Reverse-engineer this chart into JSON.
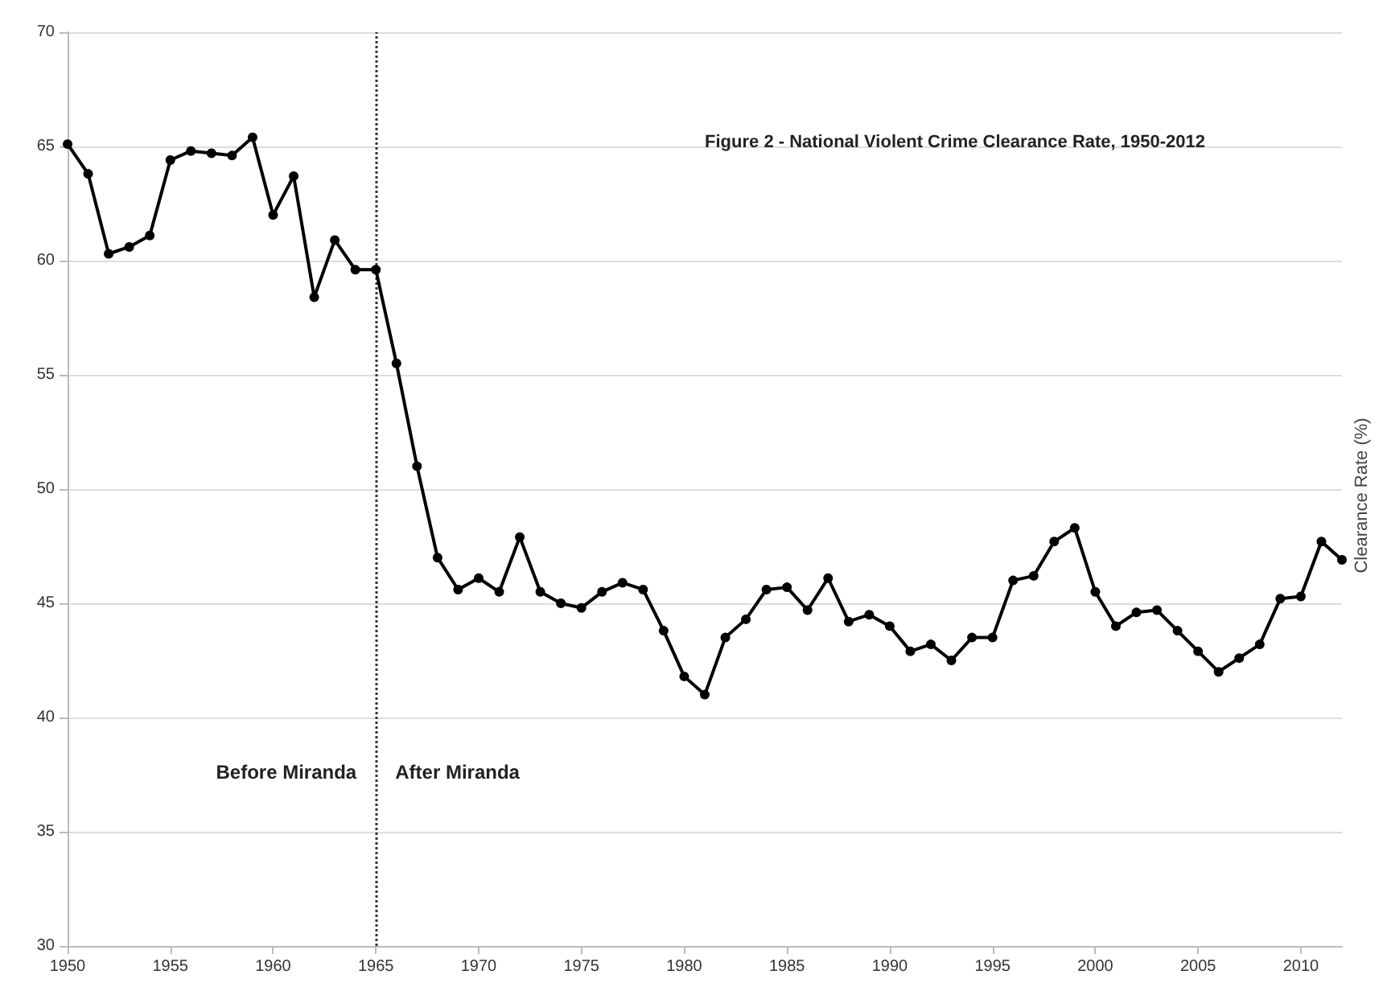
{
  "chart_data": {
    "type": "line",
    "title": "Figure 2 - National Violent Crime Clearance Rate, 1950-2012",
    "ylabel": "Clearance Rate (%)",
    "x": [
      1950,
      1951,
      1952,
      1953,
      1954,
      1955,
      1956,
      1957,
      1958,
      1959,
      1960,
      1961,
      1962,
      1963,
      1964,
      1965,
      1966,
      1967,
      1968,
      1969,
      1970,
      1971,
      1972,
      1973,
      1974,
      1975,
      1976,
      1977,
      1978,
      1979,
      1980,
      1981,
      1982,
      1983,
      1984,
      1985,
      1986,
      1987,
      1988,
      1989,
      1990,
      1991,
      1992,
      1993,
      1994,
      1995,
      1996,
      1997,
      1998,
      1999,
      2000,
      2001,
      2002,
      2003,
      2004,
      2005,
      2006,
      2007,
      2008,
      2009,
      2010,
      2011,
      2012
    ],
    "series": [
      {
        "color": "#000000",
        "values": [
          65.1,
          63.8,
          60.3,
          60.6,
          61.1,
          64.4,
          64.8,
          64.7,
          64.6,
          65.4,
          62.0,
          63.7,
          58.4,
          60.9,
          59.6,
          59.6,
          55.5,
          51.0,
          47.0,
          45.6,
          46.1,
          45.5,
          47.9,
          45.5,
          45.0,
          44.8,
          45.5,
          45.9,
          45.6,
          43.8,
          41.8,
          41.0,
          43.5,
          44.3,
          45.6,
          45.7,
          44.7,
          46.1,
          44.2,
          44.5,
          44.0,
          42.9,
          43.2,
          42.5,
          43.5,
          43.5,
          46.0,
          46.2,
          47.7,
          48.3,
          45.5,
          44.0,
          44.6,
          44.7,
          43.8,
          42.9,
          42.0,
          42.6,
          43.2,
          45.2,
          45.3,
          47.7,
          46.9
        ]
      }
    ],
    "xlim": [
      1950,
      2012
    ],
    "xticks": [
      1950,
      1955,
      1960,
      1965,
      1970,
      1975,
      1980,
      1985,
      1990,
      1995,
      2000,
      2005,
      2010
    ],
    "ylim": [
      30,
      70
    ],
    "yticks": [
      30,
      35,
      40,
      45,
      50,
      55,
      60,
      65,
      70
    ],
    "grid": "y",
    "marker": "circle",
    "line_style": "solid",
    "ref_lines": [
      {
        "axis": "x",
        "value": 1965,
        "color": "#333333",
        "line_style": "dotted"
      }
    ],
    "annotations": [
      "Before Miranda",
      "After Miranda"
    ]
  }
}
